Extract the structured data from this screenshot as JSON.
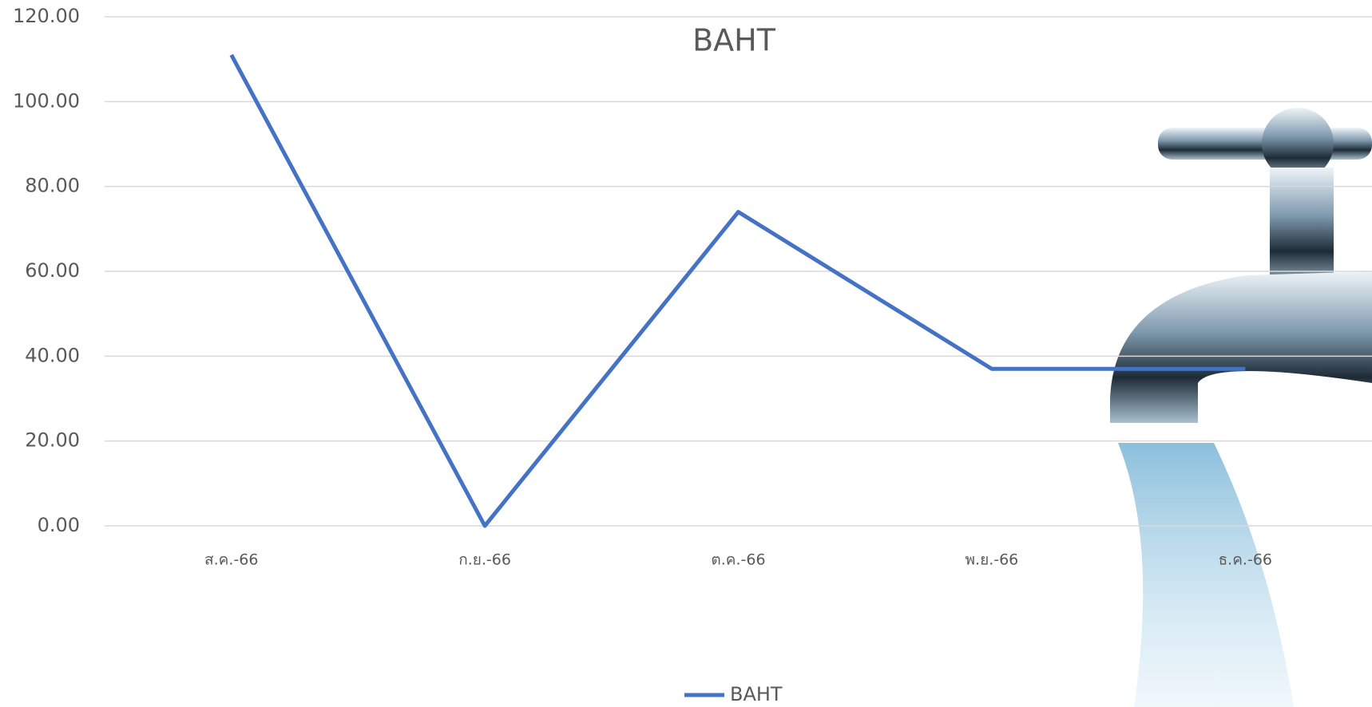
{
  "chart_data": {
    "type": "line",
    "title": "BAHT",
    "categories": [
      "ส.ค.-66",
      "ก.ย.-66",
      "ต.ค.-66",
      "พ.ย.-66",
      "ธ.ค.-66"
    ],
    "series": [
      {
        "name": "BAHT",
        "color": "#4472c4",
        "values": [
          111,
          0,
          74,
          37,
          37
        ]
      }
    ],
    "ylim": [
      0,
      120
    ],
    "yticks": [
      {
        "value": 0,
        "label": "0.00"
      },
      {
        "value": 20,
        "label": "20.00"
      },
      {
        "value": 40,
        "label": "40.00"
      },
      {
        "value": 60,
        "label": "60.00"
      },
      {
        "value": 80,
        "label": "80.00"
      },
      {
        "value": 100,
        "label": "100.00"
      },
      {
        "value": 120,
        "label": "120.00"
      }
    ],
    "grid": true,
    "legend": "bottom"
  }
}
